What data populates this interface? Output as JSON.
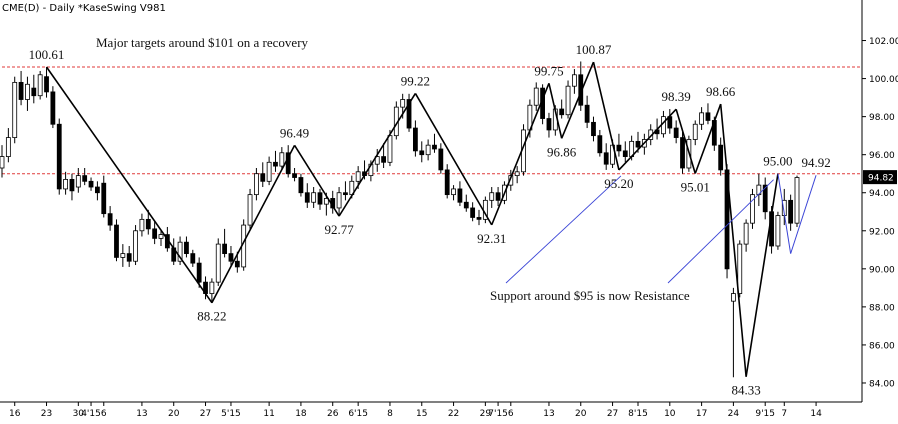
{
  "chart_data": {
    "type": "candlestick",
    "title": "CME(D) - Daily  *KaseSwing  V981",
    "ylim": [
      83.0,
      103.5
    ],
    "y_ticks": [
      "84.00",
      "86.00",
      "88.00",
      "90.00",
      "92.00",
      "94.00",
      "96.00",
      "98.00",
      "100.00",
      "102.00"
    ],
    "y_tick_values": [
      84,
      86,
      88,
      90,
      92,
      94,
      96,
      98,
      100,
      102
    ],
    "x_ticks": [
      {
        "i": 2,
        "label": "16"
      },
      {
        "i": 7,
        "label": "23"
      },
      {
        "i": 12,
        "label": "30"
      },
      {
        "i": 14,
        "label": "4'15"
      },
      {
        "i": 16,
        "label": "6"
      },
      {
        "i": 22,
        "label": "13"
      },
      {
        "i": 27,
        "label": "20"
      },
      {
        "i": 32,
        "label": "27"
      },
      {
        "i": 36,
        "label": "5'15"
      },
      {
        "i": 42,
        "label": "11"
      },
      {
        "i": 47,
        "label": "18"
      },
      {
        "i": 52,
        "label": "26"
      },
      {
        "i": 56,
        "label": "6'15"
      },
      {
        "i": 61,
        "label": "8"
      },
      {
        "i": 66,
        "label": "15"
      },
      {
        "i": 71,
        "label": "22"
      },
      {
        "i": 76,
        "label": "29"
      },
      {
        "i": 78,
        "label": "7'15"
      },
      {
        "i": 80,
        "label": "6"
      },
      {
        "i": 86,
        "label": "13"
      },
      {
        "i": 91,
        "label": "20"
      },
      {
        "i": 96,
        "label": "27"
      },
      {
        "i": 100,
        "label": "8'15"
      },
      {
        "i": 105,
        "label": "10"
      },
      {
        "i": 110,
        "label": "17"
      },
      {
        "i": 115,
        "label": "24"
      },
      {
        "i": 120,
        "label": "9'15"
      },
      {
        "i": 123,
        "label": "7"
      },
      {
        "i": 128,
        "label": "14"
      }
    ],
    "last_price": "94.82",
    "reference_lines": [
      {
        "value": 100.61,
        "label": "Major targets around $101 on a recovery",
        "color": "#e03a3a"
      },
      {
        "value": 95.0,
        "label": "",
        "color": "#e03a3a"
      }
    ],
    "swings": [
      {
        "i": 7,
        "value": 100.61,
        "label": "100.61"
      },
      {
        "i": 33,
        "value": 88.22,
        "label": "88.22"
      },
      {
        "i": 46,
        "value": 96.49,
        "label": "96.49"
      },
      {
        "i": 53,
        "value": 92.77,
        "label": "92.77"
      },
      {
        "i": 65,
        "value": 99.22,
        "label": "99.22"
      },
      {
        "i": 77,
        "value": 92.31,
        "label": "92.31"
      },
      {
        "i": 86,
        "value": 99.75,
        "label": "99.75"
      },
      {
        "i": 88,
        "value": 96.86,
        "label": "96.86"
      },
      {
        "i": 93,
        "value": 100.87,
        "label": "100.87"
      },
      {
        "i": 97,
        "value": 95.2,
        "label": "95.20"
      },
      {
        "i": 106,
        "value": 98.39,
        "label": "98.39"
      },
      {
        "i": 109,
        "value": 95.01,
        "label": "95.01"
      },
      {
        "i": 113,
        "value": 98.66,
        "label": "98.66"
      },
      {
        "i": 117,
        "value": 84.33,
        "label": "84.33"
      },
      {
        "i": 122,
        "value": 95.0,
        "label": "95.00"
      },
      {
        "i": 124,
        "value": 90.8,
        "label": ""
      },
      {
        "i": 128,
        "value": 94.92,
        "label": "94.92"
      }
    ],
    "annotation": {
      "text": "Support around $95 is now Resistance",
      "pointer_targets": [
        {
          "i": 97,
          "value": 95.2
        },
        {
          "i": 121,
          "value": 95.0
        }
      ]
    },
    "candles": [
      {
        "o": 95.3,
        "h": 96.5,
        "l": 94.8,
        "c": 95.9
      },
      {
        "o": 95.9,
        "h": 97.4,
        "l": 95.6,
        "c": 96.9
      },
      {
        "o": 96.9,
        "h": 100.1,
        "l": 96.6,
        "c": 99.8
      },
      {
        "o": 99.8,
        "h": 100.4,
        "l": 98.6,
        "c": 98.9
      },
      {
        "o": 98.9,
        "h": 100.1,
        "l": 98.3,
        "c": 99.7
      },
      {
        "o": 99.5,
        "h": 100.2,
        "l": 98.7,
        "c": 99.1
      },
      {
        "o": 99.1,
        "h": 100.4,
        "l": 98.9,
        "c": 100.2
      },
      {
        "o": 100.1,
        "h": 100.6,
        "l": 99.0,
        "c": 99.3
      },
      {
        "o": 99.3,
        "h": 99.6,
        "l": 97.4,
        "c": 97.6
      },
      {
        "o": 97.6,
        "h": 97.9,
        "l": 93.9,
        "c": 94.2
      },
      {
        "o": 94.2,
        "h": 95.1,
        "l": 93.9,
        "c": 94.7
      },
      {
        "o": 94.7,
        "h": 95.0,
        "l": 93.6,
        "c": 94.1
      },
      {
        "o": 94.3,
        "h": 95.3,
        "l": 94.0,
        "c": 94.9
      },
      {
        "o": 94.9,
        "h": 95.3,
        "l": 94.4,
        "c": 94.6
      },
      {
        "o": 94.6,
        "h": 94.8,
        "l": 94.1,
        "c": 94.3
      },
      {
        "o": 94.3,
        "h": 94.6,
        "l": 93.6,
        "c": 94.0
      },
      {
        "o": 94.5,
        "h": 94.9,
        "l": 92.7,
        "c": 92.9
      },
      {
        "o": 92.9,
        "h": 93.3,
        "l": 92.0,
        "c": 92.3
      },
      {
        "o": 92.3,
        "h": 92.6,
        "l": 90.4,
        "c": 90.6
      },
      {
        "o": 90.6,
        "h": 91.3,
        "l": 90.1,
        "c": 90.8
      },
      {
        "o": 90.8,
        "h": 91.2,
        "l": 90.1,
        "c": 90.4
      },
      {
        "o": 90.4,
        "h": 92.3,
        "l": 90.2,
        "c": 92.0
      },
      {
        "o": 92.0,
        "h": 92.9,
        "l": 91.7,
        "c": 92.6
      },
      {
        "o": 92.6,
        "h": 93.1,
        "l": 91.8,
        "c": 92.1
      },
      {
        "o": 92.1,
        "h": 92.5,
        "l": 91.3,
        "c": 91.6
      },
      {
        "o": 91.6,
        "h": 92.0,
        "l": 91.2,
        "c": 91.8
      },
      {
        "o": 91.8,
        "h": 92.2,
        "l": 90.9,
        "c": 91.1
      },
      {
        "o": 91.1,
        "h": 91.6,
        "l": 90.2,
        "c": 90.4
      },
      {
        "o": 90.4,
        "h": 91.7,
        "l": 90.2,
        "c": 91.4
      },
      {
        "o": 91.4,
        "h": 91.7,
        "l": 90.6,
        "c": 90.8
      },
      {
        "o": 90.8,
        "h": 91.0,
        "l": 90.1,
        "c": 90.3
      },
      {
        "o": 90.3,
        "h": 90.6,
        "l": 89.0,
        "c": 89.3
      },
      {
        "o": 89.3,
        "h": 89.6,
        "l": 88.4,
        "c": 88.7
      },
      {
        "o": 88.7,
        "h": 89.5,
        "l": 88.2,
        "c": 89.3
      },
      {
        "o": 89.3,
        "h": 91.6,
        "l": 89.1,
        "c": 91.3
      },
      {
        "o": 91.3,
        "h": 92.1,
        "l": 90.6,
        "c": 90.8
      },
      {
        "o": 90.8,
        "h": 91.2,
        "l": 90.1,
        "c": 90.4
      },
      {
        "o": 90.4,
        "h": 90.9,
        "l": 89.8,
        "c": 90.1
      },
      {
        "o": 90.1,
        "h": 92.6,
        "l": 89.9,
        "c": 92.3
      },
      {
        "o": 92.3,
        "h": 94.2,
        "l": 92.1,
        "c": 93.9
      },
      {
        "o": 93.9,
        "h": 95.3,
        "l": 93.6,
        "c": 95.0
      },
      {
        "o": 95.0,
        "h": 95.6,
        "l": 94.3,
        "c": 94.6
      },
      {
        "o": 94.6,
        "h": 95.9,
        "l": 94.4,
        "c": 95.6
      },
      {
        "o": 95.6,
        "h": 96.2,
        "l": 95.1,
        "c": 95.4
      },
      {
        "o": 95.4,
        "h": 96.4,
        "l": 95.2,
        "c": 96.1
      },
      {
        "o": 96.1,
        "h": 96.5,
        "l": 94.8,
        "c": 95.0
      },
      {
        "o": 95.0,
        "h": 95.3,
        "l": 94.6,
        "c": 94.8
      },
      {
        "o": 94.8,
        "h": 95.0,
        "l": 93.8,
        "c": 94.0
      },
      {
        "o": 94.0,
        "h": 94.5,
        "l": 93.2,
        "c": 93.5
      },
      {
        "o": 93.5,
        "h": 94.3,
        "l": 93.2,
        "c": 94.0
      },
      {
        "o": 94.0,
        "h": 94.2,
        "l": 93.1,
        "c": 93.4
      },
      {
        "o": 93.4,
        "h": 94.0,
        "l": 92.8,
        "c": 93.7
      },
      {
        "o": 93.7,
        "h": 94.1,
        "l": 92.9,
        "c": 93.2
      },
      {
        "o": 93.2,
        "h": 94.3,
        "l": 92.8,
        "c": 94.0
      },
      {
        "o": 94.0,
        "h": 94.6,
        "l": 93.6,
        "c": 93.9
      },
      {
        "o": 93.9,
        "h": 94.9,
        "l": 93.7,
        "c": 94.6
      },
      {
        "o": 94.6,
        "h": 95.4,
        "l": 94.2,
        "c": 95.1
      },
      {
        "o": 95.1,
        "h": 95.7,
        "l": 94.7,
        "c": 94.9
      },
      {
        "o": 94.9,
        "h": 95.7,
        "l": 94.6,
        "c": 95.5
      },
      {
        "o": 95.5,
        "h": 96.3,
        "l": 95.1,
        "c": 95.9
      },
      {
        "o": 95.9,
        "h": 96.6,
        "l": 95.3,
        "c": 95.6
      },
      {
        "o": 95.6,
        "h": 97.3,
        "l": 95.4,
        "c": 97.0
      },
      {
        "o": 97.0,
        "h": 98.8,
        "l": 96.8,
        "c": 98.5
      },
      {
        "o": 98.5,
        "h": 99.2,
        "l": 97.9,
        "c": 98.9
      },
      {
        "o": 98.9,
        "h": 99.2,
        "l": 97.2,
        "c": 97.4
      },
      {
        "o": 97.4,
        "h": 97.8,
        "l": 95.9,
        "c": 96.2
      },
      {
        "o": 96.2,
        "h": 96.7,
        "l": 95.6,
        "c": 96.0
      },
      {
        "o": 96.0,
        "h": 96.8,
        "l": 95.7,
        "c": 96.5
      },
      {
        "o": 96.5,
        "h": 97.1,
        "l": 96.1,
        "c": 96.3
      },
      {
        "o": 96.3,
        "h": 96.6,
        "l": 95.0,
        "c": 95.2
      },
      {
        "o": 95.2,
        "h": 95.5,
        "l": 93.7,
        "c": 93.9
      },
      {
        "o": 93.9,
        "h": 94.4,
        "l": 93.6,
        "c": 94.2
      },
      {
        "o": 94.2,
        "h": 94.6,
        "l": 93.3,
        "c": 93.5
      },
      {
        "o": 93.5,
        "h": 93.9,
        "l": 93.0,
        "c": 93.2
      },
      {
        "o": 93.2,
        "h": 93.5,
        "l": 92.5,
        "c": 92.7
      },
      {
        "o": 92.7,
        "h": 93.1,
        "l": 92.3,
        "c": 92.6
      },
      {
        "o": 92.6,
        "h": 93.8,
        "l": 92.4,
        "c": 93.6
      },
      {
        "o": 93.6,
        "h": 94.3,
        "l": 93.2,
        "c": 94.0
      },
      {
        "o": 94.0,
        "h": 94.3,
        "l": 93.3,
        "c": 93.6
      },
      {
        "o": 93.6,
        "h": 94.6,
        "l": 93.4,
        "c": 94.4
      },
      {
        "o": 94.4,
        "h": 95.2,
        "l": 94.1,
        "c": 94.9
      },
      {
        "o": 94.9,
        "h": 95.4,
        "l": 94.5,
        "c": 95.1
      },
      {
        "o": 95.1,
        "h": 97.6,
        "l": 94.9,
        "c": 97.3
      },
      {
        "o": 97.3,
        "h": 98.9,
        "l": 96.9,
        "c": 98.6
      },
      {
        "o": 98.6,
        "h": 99.8,
        "l": 98.3,
        "c": 99.5
      },
      {
        "o": 99.5,
        "h": 99.7,
        "l": 97.6,
        "c": 97.9
      },
      {
        "o": 97.9,
        "h": 98.2,
        "l": 96.9,
        "c": 97.3
      },
      {
        "o": 97.3,
        "h": 98.6,
        "l": 97.0,
        "c": 98.4
      },
      {
        "o": 98.4,
        "h": 98.9,
        "l": 97.9,
        "c": 98.1
      },
      {
        "o": 98.1,
        "h": 99.9,
        "l": 97.9,
        "c": 99.6
      },
      {
        "o": 99.6,
        "h": 100.5,
        "l": 99.2,
        "c": 100.2
      },
      {
        "o": 100.2,
        "h": 100.9,
        "l": 98.3,
        "c": 98.6
      },
      {
        "o": 98.6,
        "h": 99.1,
        "l": 97.4,
        "c": 97.7
      },
      {
        "o": 97.7,
        "h": 98.0,
        "l": 96.7,
        "c": 97.0
      },
      {
        "o": 97.0,
        "h": 97.3,
        "l": 95.9,
        "c": 96.1
      },
      {
        "o": 96.1,
        "h": 96.6,
        "l": 95.2,
        "c": 95.5
      },
      {
        "o": 95.5,
        "h": 96.8,
        "l": 95.3,
        "c": 96.5
      },
      {
        "o": 96.5,
        "h": 97.1,
        "l": 95.9,
        "c": 96.2
      },
      {
        "o": 96.2,
        "h": 96.7,
        "l": 95.6,
        "c": 95.9
      },
      {
        "o": 95.9,
        "h": 97.0,
        "l": 95.7,
        "c": 96.7
      },
      {
        "o": 96.7,
        "h": 97.2,
        "l": 96.1,
        "c": 96.4
      },
      {
        "o": 96.4,
        "h": 97.1,
        "l": 96.0,
        "c": 96.8
      },
      {
        "o": 96.8,
        "h": 97.6,
        "l": 96.5,
        "c": 97.3
      },
      {
        "o": 97.3,
        "h": 97.9,
        "l": 96.8,
        "c": 97.1
      },
      {
        "o": 97.1,
        "h": 98.3,
        "l": 96.9,
        "c": 98.0
      },
      {
        "o": 98.0,
        "h": 98.4,
        "l": 97.1,
        "c": 97.4
      },
      {
        "o": 97.4,
        "h": 97.8,
        "l": 96.6,
        "c": 96.9
      },
      {
        "o": 96.9,
        "h": 97.2,
        "l": 95.0,
        "c": 95.3
      },
      {
        "o": 95.3,
        "h": 97.0,
        "l": 95.1,
        "c": 96.8
      },
      {
        "o": 96.8,
        "h": 97.8,
        "l": 96.5,
        "c": 97.6
      },
      {
        "o": 97.6,
        "h": 98.5,
        "l": 97.3,
        "c": 98.2
      },
      {
        "o": 98.2,
        "h": 98.7,
        "l": 97.6,
        "c": 97.8
      },
      {
        "o": 97.8,
        "h": 98.0,
        "l": 96.2,
        "c": 96.5
      },
      {
        "o": 96.5,
        "h": 96.9,
        "l": 94.9,
        "c": 95.2
      },
      {
        "o": 95.2,
        "h": 95.5,
        "l": 89.5,
        "c": 90.0
      },
      {
        "o": 88.3,
        "h": 89.0,
        "l": 84.3,
        "c": 88.7
      },
      {
        "o": 88.7,
        "h": 91.5,
        "l": 88.5,
        "c": 91.3
      },
      {
        "o": 91.3,
        "h": 92.6,
        "l": 90.9,
        "c": 92.4
      },
      {
        "o": 92.4,
        "h": 94.2,
        "l": 92.1,
        "c": 93.9
      },
      {
        "o": 93.9,
        "h": 95.0,
        "l": 93.3,
        "c": 94.4
      },
      {
        "o": 94.4,
        "h": 94.8,
        "l": 92.6,
        "c": 93.0
      },
      {
        "o": 93.0,
        "h": 93.3,
        "l": 90.8,
        "c": 91.2
      },
      {
        "o": 91.2,
        "h": 93.0,
        "l": 91.0,
        "c": 92.8
      },
      {
        "o": 92.8,
        "h": 94.2,
        "l": 92.3,
        "c": 93.6
      },
      {
        "o": 93.6,
        "h": 93.9,
        "l": 92.0,
        "c": 92.4
      },
      {
        "o": 92.4,
        "h": 94.9,
        "l": 92.2,
        "c": 94.8
      }
    ]
  }
}
